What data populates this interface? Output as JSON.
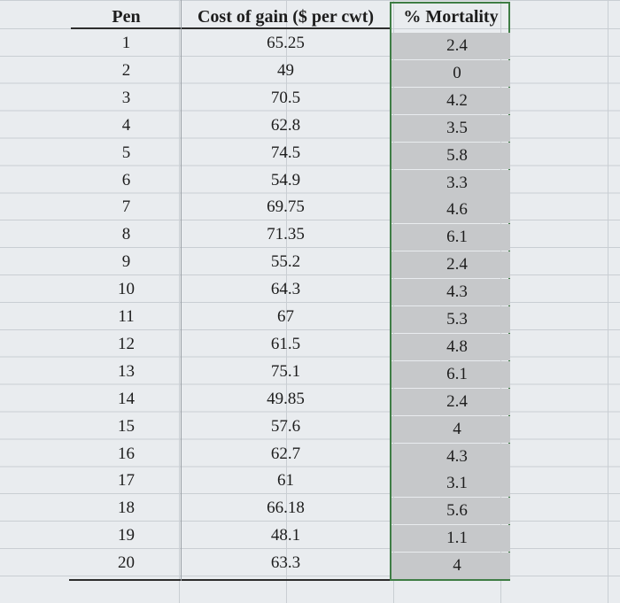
{
  "table": {
    "header": [
      "Pen",
      "Cost of gain ($ per cwt)",
      "% Mortality"
    ],
    "rows": [
      [
        "1",
        "65.25",
        "2.4"
      ],
      [
        "2",
        "49",
        "0"
      ],
      [
        "3",
        "70.5",
        "4.2"
      ],
      [
        "4",
        "62.8",
        "3.5"
      ],
      [
        "5",
        "74.5",
        "5.8"
      ],
      [
        "6",
        "54.9",
        "3.3"
      ],
      [
        "7",
        "69.75",
        "4.6"
      ],
      [
        "8",
        "71.35",
        "6.1"
      ],
      [
        "9",
        "55.2",
        "2.4"
      ],
      [
        "10",
        "64.3",
        "4.3"
      ],
      [
        "11",
        "67",
        "5.3"
      ],
      [
        "12",
        "61.5",
        "4.8"
      ],
      [
        "13",
        "75.1",
        "6.1"
      ],
      [
        "14",
        "49.85",
        "2.4"
      ],
      [
        "15",
        "57.6",
        "4"
      ],
      [
        "16",
        "62.7",
        "4.3"
      ],
      [
        "17",
        "61",
        "3.1"
      ],
      [
        "18",
        "66.18",
        "5.6"
      ],
      [
        "19",
        "48.1",
        "1.1"
      ],
      [
        "20",
        "63.3",
        "4"
      ]
    ]
  }
}
